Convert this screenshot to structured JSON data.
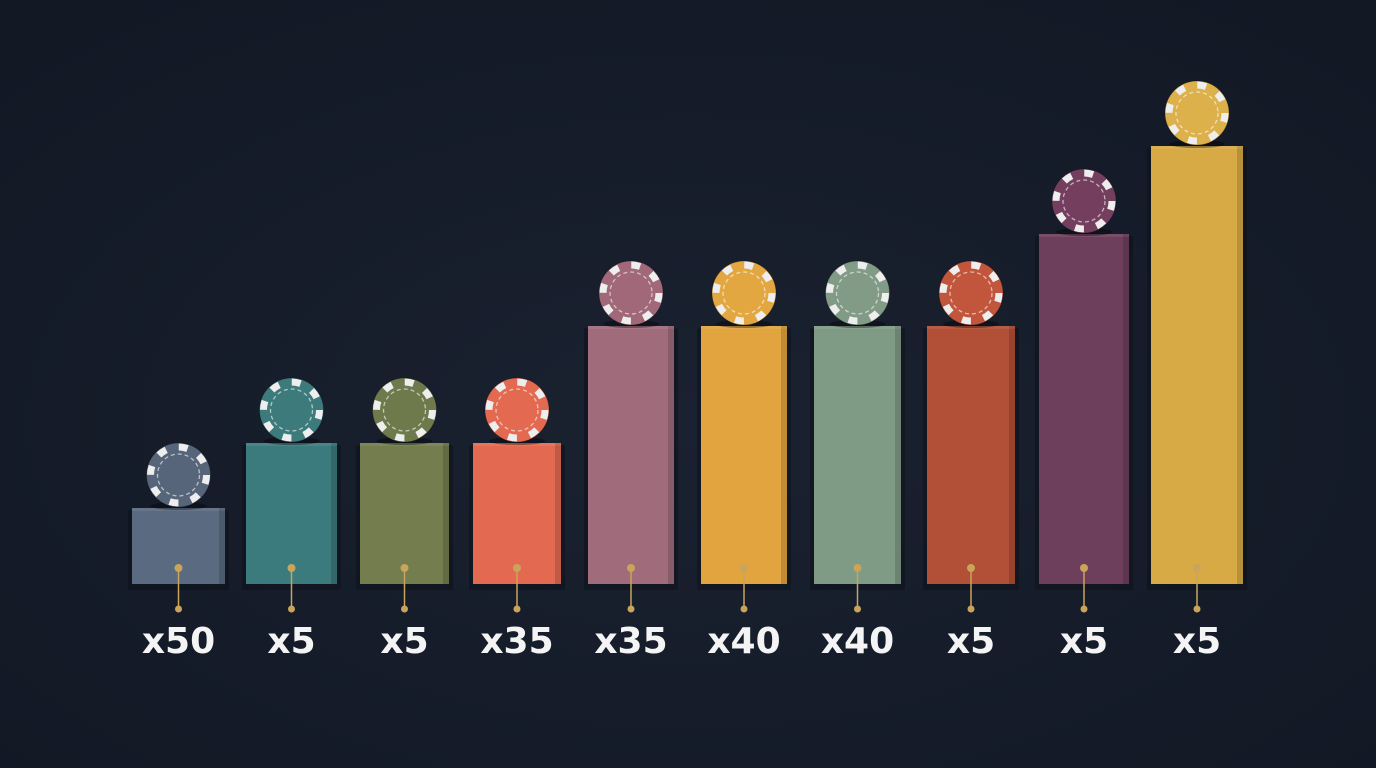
{
  "bars": [
    {
      "label": "x50"
    },
    {
      "label": "x5"
    },
    {
      "label": "x5"
    },
    {
      "label": "x35"
    },
    {
      "label": "x35"
    },
    {
      "label": "x40"
    },
    {
      "label": "x40"
    },
    {
      "label": "x5"
    },
    {
      "label": "x5"
    },
    {
      "label": "x5"
    }
  ]
}
